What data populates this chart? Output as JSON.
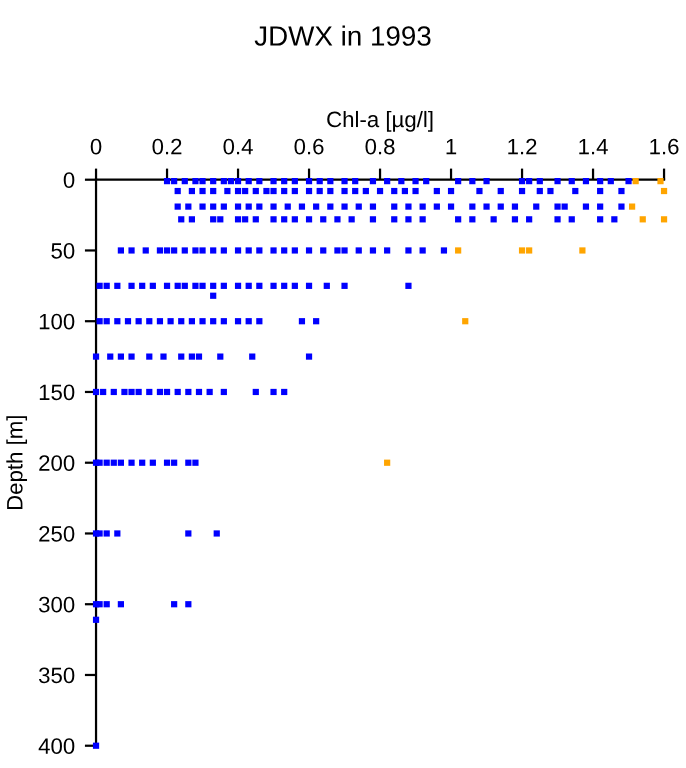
{
  "chart_data": {
    "type": "scatter",
    "title": "JDWX in 1993",
    "xlabel": "Chl-a [µg/l]",
    "ylabel": "Depth [m]",
    "xlim": [
      0,
      1.6
    ],
    "xticks": [
      0,
      0.2,
      0.4,
      0.6,
      0.8,
      1,
      1.2,
      1.4,
      1.6
    ],
    "ylim": [
      400,
      0
    ],
    "yticks": [
      0,
      50,
      100,
      150,
      200,
      250,
      300,
      350,
      400
    ],
    "grid": false,
    "legend": false,
    "marker": "square",
    "series": [
      {
        "color": "#0000ff",
        "x": [
          0.2,
          0.22,
          0.25,
          0.28,
          0.3,
          0.33,
          0.36,
          0.38,
          0.4,
          0.43,
          0.46,
          0.5,
          0.53,
          0.56,
          0.6,
          0.63,
          0.66,
          0.7,
          0.73,
          0.78,
          0.82,
          0.86,
          0.9,
          0.93,
          1.02,
          1.06,
          1.1,
          1.2,
          1.22,
          1.25,
          1.3,
          1.34,
          1.38,
          1.42,
          1.45,
          1.5
        ],
        "values": [
          1,
          1,
          1,
          1,
          1,
          1,
          1,
          1,
          1,
          1,
          1,
          1,
          1,
          1,
          1,
          1,
          1,
          1,
          1,
          1,
          1,
          1,
          1,
          1,
          1,
          1,
          1,
          1,
          1,
          1,
          1,
          1,
          1,
          1,
          1,
          1
        ]
      },
      {
        "color": "#0000ff",
        "x": [
          0.23,
          0.27,
          0.3,
          0.33,
          0.37,
          0.4,
          0.42,
          0.45,
          0.48,
          0.5,
          0.53,
          0.56,
          0.6,
          0.63,
          0.66,
          0.7,
          0.73,
          0.76,
          0.8,
          0.84,
          0.87,
          0.9,
          0.96,
          1.0,
          1.08,
          1.14,
          1.2,
          1.25,
          1.28,
          1.35,
          1.42,
          1.48
        ],
        "values": [
          8,
          8,
          8,
          8,
          8,
          8,
          8,
          8,
          8,
          8,
          8,
          8,
          8,
          8,
          8,
          8,
          8,
          8,
          8,
          8,
          8,
          8,
          8,
          8,
          8,
          8,
          8,
          8,
          8,
          8,
          8,
          8
        ]
      },
      {
        "color": "#0000ff",
        "x": [
          0.23,
          0.26,
          0.3,
          0.33,
          0.36,
          0.4,
          0.43,
          0.46,
          0.5,
          0.54,
          0.58,
          0.62,
          0.66,
          0.7,
          0.74,
          0.78,
          0.84,
          0.88,
          0.92,
          0.96,
          1.0,
          1.06,
          1.1,
          1.14,
          1.18,
          1.24,
          1.3,
          1.32,
          1.38,
          1.42,
          1.48
        ],
        "values": [
          19,
          19,
          19,
          19,
          19,
          19,
          19,
          19,
          19,
          19,
          19,
          19,
          19,
          19,
          19,
          19,
          19,
          19,
          19,
          19,
          19,
          19,
          19,
          19,
          19,
          19,
          19,
          19,
          19,
          19,
          19
        ]
      },
      {
        "color": "#0000ff",
        "x": [
          0.24,
          0.27,
          0.33,
          0.35,
          0.4,
          0.42,
          0.45,
          0.5,
          0.53,
          0.56,
          0.6,
          0.64,
          0.68,
          0.72,
          0.78,
          0.84,
          0.88,
          0.92,
          1.02,
          1.06,
          1.12,
          1.18,
          1.22,
          1.3,
          1.34,
          1.42,
          1.46
        ],
        "values": [
          28,
          28,
          28,
          28,
          28,
          28,
          28,
          28,
          28,
          28,
          28,
          28,
          28,
          28,
          28,
          28,
          28,
          28,
          28,
          28,
          28,
          28,
          28,
          28,
          28,
          28,
          28
        ]
      },
      {
        "color": "#0000ff",
        "x": [
          0.07,
          0.1,
          0.14,
          0.18,
          0.2,
          0.22,
          0.25,
          0.28,
          0.3,
          0.33,
          0.36,
          0.4,
          0.43,
          0.46,
          0.5,
          0.53,
          0.56,
          0.6,
          0.64,
          0.68,
          0.7,
          0.74,
          0.78,
          0.82,
          0.88,
          0.92,
          0.98
        ],
        "values": [
          50,
          50,
          50,
          50,
          50,
          50,
          50,
          50,
          50,
          50,
          50,
          50,
          50,
          50,
          50,
          50,
          50,
          50,
          50,
          50,
          50,
          50,
          50,
          50,
          50,
          50,
          50
        ]
      },
      {
        "color": "#0000ff",
        "x": [
          0.01,
          0.03,
          0.06,
          0.1,
          0.13,
          0.16,
          0.2,
          0.23,
          0.25,
          0.28,
          0.3,
          0.33,
          0.36,
          0.4,
          0.43,
          0.46,
          0.5,
          0.53,
          0.56,
          0.6,
          0.65,
          0.7,
          0.88,
          0.33
        ],
        "values": [
          75,
          75,
          75,
          75,
          75,
          75,
          75,
          75,
          75,
          75,
          75,
          75,
          75,
          75,
          75,
          75,
          75,
          75,
          75,
          75,
          75,
          75,
          75,
          82
        ]
      },
      {
        "color": "#0000ff",
        "x": [
          0.01,
          0.03,
          0.06,
          0.09,
          0.12,
          0.15,
          0.18,
          0.21,
          0.24,
          0.27,
          0.3,
          0.33,
          0.36,
          0.4,
          0.43,
          0.46,
          0.58,
          0.62
        ],
        "values": [
          100,
          100,
          100,
          100,
          100,
          100,
          100,
          100,
          100,
          100,
          100,
          100,
          100,
          100,
          100,
          100,
          100,
          100
        ]
      },
      {
        "color": "#0000ff",
        "x": [
          0.0,
          0.04,
          0.07,
          0.1,
          0.15,
          0.19,
          0.24,
          0.27,
          0.29,
          0.35,
          0.44,
          0.6
        ],
        "values": [
          125,
          125,
          125,
          125,
          125,
          125,
          125,
          125,
          125,
          125,
          125,
          125
        ]
      },
      {
        "color": "#0000ff",
        "x": [
          0,
          0.02,
          0.05,
          0.08,
          0.1,
          0.12,
          0.15,
          0.18,
          0.2,
          0.23,
          0.26,
          0.29,
          0.32,
          0.36,
          0.45,
          0.5,
          0.53
        ],
        "values": [
          150,
          150,
          150,
          150,
          150,
          150,
          150,
          150,
          150,
          150,
          150,
          150,
          150,
          150,
          150,
          150,
          150
        ]
      },
      {
        "color": "#0000ff",
        "x": [
          0,
          0.01,
          0.03,
          0.05,
          0.07,
          0.1,
          0.13,
          0.16,
          0.2,
          0.22,
          0.26,
          0.28
        ],
        "values": [
          200,
          200,
          200,
          200,
          200,
          200,
          200,
          200,
          200,
          200,
          200,
          200
        ]
      },
      {
        "color": "#0000ff",
        "x": [
          0,
          0.01,
          0.03,
          0.06,
          0.26,
          0.34
        ],
        "values": [
          250,
          250,
          250,
          250,
          250,
          250
        ]
      },
      {
        "color": "#0000ff",
        "x": [
          0,
          0.01,
          0.03,
          0.07,
          0.22,
          0.26,
          0,
          0
        ],
        "values": [
          300,
          300,
          300,
          300,
          300,
          300,
          311,
          400
        ]
      },
      {
        "color": "#ffa500",
        "x": [
          1.52,
          1.59,
          1.6,
          1.51,
          1.54,
          1.6,
          1.02,
          1.2,
          1.22,
          1.37,
          1.04,
          0.82
        ],
        "values": [
          1,
          1,
          8,
          19,
          28,
          28,
          50,
          50,
          50,
          50,
          100,
          200
        ]
      }
    ]
  }
}
